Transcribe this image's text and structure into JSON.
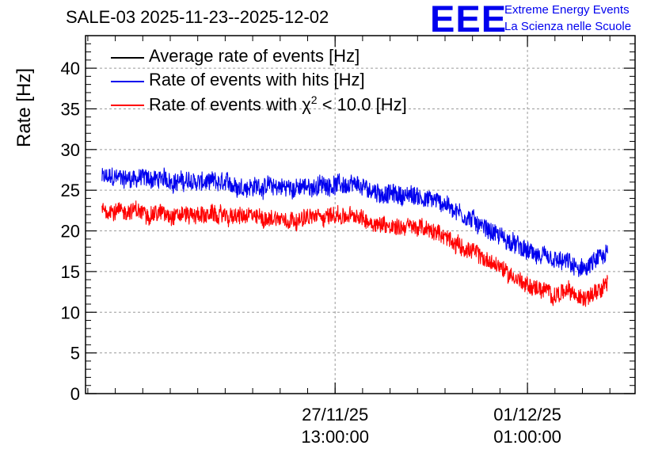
{
  "page_title": "SALE-03 2025-11-23--2025-12-02",
  "logo": {
    "mark": "EEE",
    "line1": "Extreme Energy Events",
    "line2": "La Scienza nelle Scuole"
  },
  "colors": {
    "average": "#000000",
    "hits": "#0000ee",
    "chi2": "#ff0000",
    "grid": "#9a9a9a"
  },
  "legend": {
    "average_label": "Average rate of events [Hz]",
    "hits_label": "Rate of events with hits [Hz]",
    "chi2_prefix": "Rate of events with ",
    "chi2_symbol": "χ",
    "chi2_power": "2",
    "chi2_suffix": " < 10.0 [Hz]"
  },
  "chart_data": {
    "type": "line",
    "title": "SALE-03 2025-11-23--2025-12-02",
    "ylabel": "Rate [Hz]",
    "xlabel": "",
    "ylim": [
      0,
      44
    ],
    "yticks": [
      0,
      5,
      10,
      15,
      20,
      25,
      30,
      35,
      40
    ],
    "grid": true,
    "legend_position": "top-left",
    "x_unit": "days since 2025-11-23 00:00",
    "xlim": [
      0,
      10
    ],
    "x_tick_labels": [
      {
        "x": 4.5417,
        "date": "27/11/25",
        "time": "13:00:00"
      },
      {
        "x": 8.0417,
        "date": "01/12/25",
        "time": "01:00:00"
      }
    ],
    "series": [
      {
        "name": "Rate of events with hits [Hz]",
        "color": "#0000ee",
        "noise": 1.1,
        "x": [
          0.3,
          1.0,
          2.0,
          3.0,
          4.0,
          4.5,
          5.0,
          5.5,
          6.0,
          6.5,
          7.0,
          7.5,
          8.0,
          8.5,
          8.8,
          9.0,
          9.3,
          9.5
        ],
        "y": [
          26.5,
          26.5,
          26.0,
          25.5,
          25.3,
          25.8,
          25.3,
          24.5,
          24.3,
          23.5,
          21.5,
          19.5,
          17.5,
          16.2,
          16.0,
          15.0,
          16.3,
          17.0
        ]
      },
      {
        "name": "Rate of events with χ² < 10.0 [Hz]",
        "color": "#ff0000",
        "noise": 1.0,
        "x": [
          0.3,
          1.0,
          2.0,
          3.0,
          4.0,
          4.5,
          5.0,
          5.5,
          6.0,
          6.5,
          7.0,
          7.5,
          8.0,
          8.5,
          8.8,
          9.0,
          9.3,
          9.5
        ],
        "y": [
          22.7,
          22.3,
          22.0,
          21.7,
          21.5,
          22.0,
          21.5,
          20.7,
          20.5,
          19.5,
          17.5,
          15.7,
          13.5,
          12.2,
          12.5,
          11.5,
          13.0,
          13.8
        ]
      }
    ]
  }
}
